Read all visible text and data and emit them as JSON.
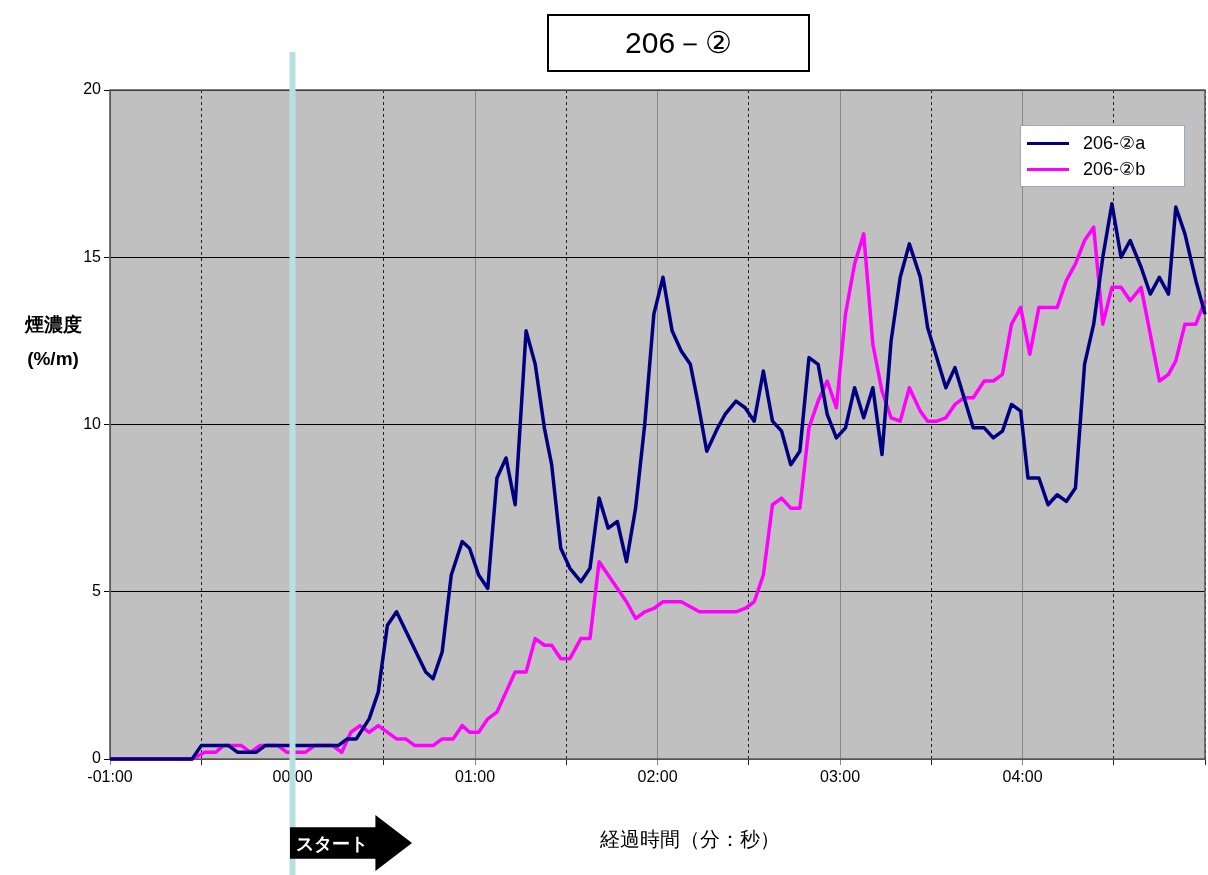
{
  "chart_data": {
    "type": "line",
    "title": "206－②",
    "xlabel": "経過時間（分：秒）",
    "ylabel": "煙濃度(%/m)",
    "annotations": [
      "スタート"
    ],
    "xlim": [
      -1,
      5
    ],
    "xticks": [
      {
        "value": -1,
        "label": "-01:00"
      },
      {
        "value": -0.5,
        "label": null
      },
      {
        "value": 0,
        "label": "00:00"
      },
      {
        "value": 0.5,
        "label": null
      },
      {
        "value": 1,
        "label": "01:00"
      },
      {
        "value": 1.5,
        "label": null
      },
      {
        "value": 2,
        "label": "02:00"
      },
      {
        "value": 2.5,
        "label": null
      },
      {
        "value": 3,
        "label": "03:00"
      },
      {
        "value": 3.5,
        "label": null
      },
      {
        "value": 4,
        "label": "04:00"
      },
      {
        "value": 4.5,
        "label": null
      },
      {
        "value": 5,
        "label": null
      }
    ],
    "ylim": [
      0,
      20
    ],
    "yticks": [
      0,
      5,
      10,
      15,
      20
    ],
    "grid": true,
    "legend": "top right",
    "marker": "none",
    "line_style": "solid",
    "ref_lines": [
      {
        "axis": "x",
        "value": 0,
        "label": null,
        "color": "#b9dfe3"
      }
    ],
    "series": [
      {
        "name": "206-②a",
        "color": "#000080",
        "x": [
          -1,
          -0.55,
          -0.5,
          -0.35,
          -0.3,
          -0.2,
          -0.15,
          0.25,
          0.3,
          0.35,
          0.42,
          0.47,
          0.52,
          0.57,
          0.73,
          0.77,
          0.82,
          0.87,
          0.93,
          0.97,
          1.02,
          1.07,
          1.12,
          1.17,
          1.22,
          1.28,
          1.33,
          1.38,
          1.42,
          1.47,
          1.52,
          1.58,
          1.63,
          1.68,
          1.73,
          1.78,
          1.83,
          1.88,
          1.93,
          1.98,
          2.03,
          2.08,
          2.13,
          2.18,
          2.22,
          2.27,
          2.33,
          2.37,
          2.43,
          2.48,
          2.53,
          2.58,
          2.63,
          2.68,
          2.73,
          2.78,
          2.83,
          2.88,
          2.93,
          2.98,
          3.03,
          3.08,
          3.13,
          3.18,
          3.23,
          3.28,
          3.33,
          3.38,
          3.44,
          3.48,
          3.53,
          3.58,
          3.63,
          3.68,
          3.73,
          3.79,
          3.84,
          3.89,
          3.94,
          3.99,
          4.03,
          4.09,
          4.14,
          4.19,
          4.24,
          4.29,
          4.34,
          4.39,
          4.44,
          4.49,
          4.54,
          4.59,
          4.65,
          4.7,
          4.75,
          4.8,
          4.84,
          4.89,
          4.95,
          5
        ],
        "values": [
          0,
          0,
          0.4,
          0.4,
          0.2,
          0.2,
          0.4,
          0.4,
          0.6,
          0.6,
          1.2,
          2,
          4,
          4.4,
          2.6,
          2.4,
          3.2,
          5.5,
          6.5,
          6.3,
          5.5,
          5.1,
          8.4,
          9,
          7.6,
          12.8,
          11.8,
          9.9,
          8.8,
          6.3,
          5.7,
          5.3,
          5.7,
          7.8,
          6.9,
          7.1,
          5.9,
          7.5,
          10,
          13.3,
          14.4,
          12.8,
          12.2,
          11.8,
          10.7,
          9.2,
          9.9,
          10.3,
          10.7,
          10.5,
          10.1,
          11.6,
          10.1,
          9.8,
          8.8,
          9.2,
          12,
          11.8,
          10.3,
          9.6,
          9.9,
          11.1,
          10.2,
          11.1,
          9.1,
          12.5,
          14.4,
          15.4,
          14.4,
          12.9,
          12,
          11.1,
          11.7,
          10.8,
          9.9,
          9.9,
          9.6,
          9.8,
          10.6,
          10.4,
          8.4,
          8.4,
          7.6,
          7.9,
          7.7,
          8.1,
          11.8,
          13,
          15,
          16.6,
          15,
          15.5,
          14.7,
          13.9,
          14.4,
          13.9,
          16.5,
          15.7,
          14.3,
          13.3
        ]
      },
      {
        "name": "206-②b",
        "color": "#ff00ff",
        "x": [
          -1,
          -0.55,
          -0.48,
          -0.42,
          -0.38,
          -0.28,
          -0.23,
          -0.18,
          -0.08,
          -0.03,
          0.07,
          0.12,
          0.22,
          0.27,
          0.32,
          0.37,
          0.42,
          0.47,
          0.57,
          0.62,
          0.67,
          0.77,
          0.82,
          0.88,
          0.93,
          0.97,
          1.02,
          1.07,
          1.12,
          1.17,
          1.22,
          1.28,
          1.33,
          1.38,
          1.42,
          1.47,
          1.52,
          1.58,
          1.63,
          1.68,
          1.83,
          1.88,
          1.93,
          1.98,
          2.03,
          2.13,
          2.23,
          2.43,
          2.48,
          2.53,
          2.58,
          2.63,
          2.68,
          2.73,
          2.78,
          2.83,
          2.88,
          2.93,
          2.98,
          3.03,
          3.08,
          3.13,
          3.18,
          3.23,
          3.28,
          3.33,
          3.38,
          3.44,
          3.48,
          3.53,
          3.58,
          3.63,
          3.68,
          3.73,
          3.79,
          3.84,
          3.89,
          3.94,
          3.99,
          4.04,
          4.09,
          4.19,
          4.24,
          4.29,
          4.34,
          4.39,
          4.44,
          4.49,
          4.54,
          4.59,
          4.65,
          4.7,
          4.75,
          4.8,
          4.84,
          4.89,
          4.95,
          5
        ],
        "values": [
          0,
          0,
          0.2,
          0.2,
          0.4,
          0.4,
          0.2,
          0.4,
          0.4,
          0.2,
          0.2,
          0.4,
          0.4,
          0.2,
          0.8,
          1,
          0.8,
          1,
          0.6,
          0.6,
          0.4,
          0.4,
          0.6,
          0.6,
          1,
          0.8,
          0.8,
          1.2,
          1.4,
          2,
          2.6,
          2.6,
          3.6,
          3.4,
          3.4,
          3,
          3,
          3.6,
          3.6,
          5.9,
          4.7,
          4.2,
          4.4,
          4.5,
          4.7,
          4.7,
          4.4,
          4.4,
          4.5,
          4.7,
          5.5,
          7.6,
          7.8,
          7.5,
          7.5,
          9.9,
          10.7,
          11.3,
          10.5,
          13.3,
          14.8,
          15.7,
          12.4,
          11,
          10.2,
          10.1,
          11.1,
          10.4,
          10.1,
          10.1,
          10.2,
          10.6,
          10.8,
          10.8,
          11.3,
          11.3,
          11.5,
          13,
          13.5,
          12.1,
          13.5,
          13.5,
          14.3,
          14.8,
          15.5,
          15.9,
          13,
          14.1,
          14.1,
          13.7,
          14.1,
          12.7,
          11.3,
          11.5,
          11.9,
          13,
          13,
          13.7
        ]
      }
    ]
  }
}
